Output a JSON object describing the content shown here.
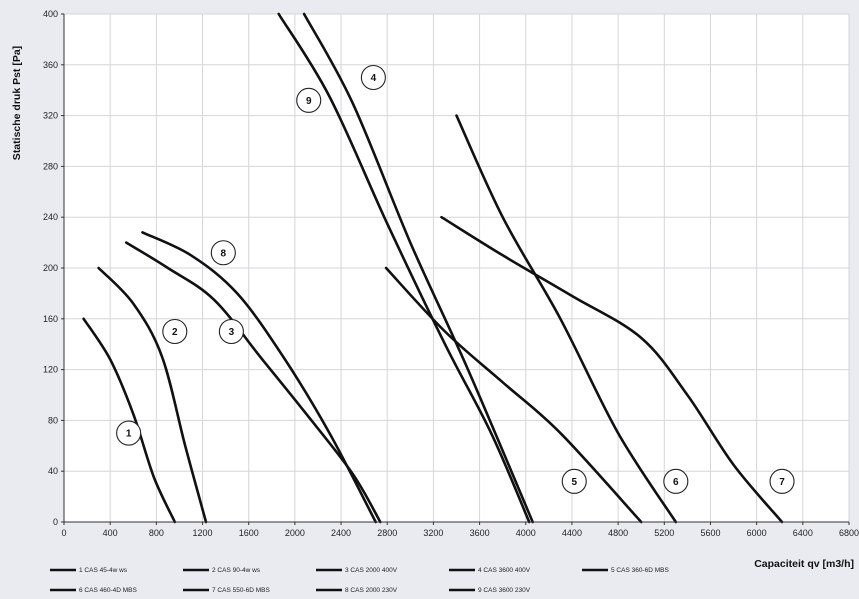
{
  "chart_data": {
    "type": "line",
    "xlabel": "Capaciteit qv [m3/h]",
    "ylabel": "Statische druk Pst [Pa]",
    "xlim": [
      0,
      6800
    ],
    "ylim": [
      0,
      400
    ],
    "x_ticks": [
      0,
      400,
      800,
      1200,
      1600,
      2000,
      2400,
      2800,
      3200,
      3600,
      4000,
      4400,
      4800,
      5200,
      5600,
      6000,
      6400,
      6800
    ],
    "y_ticks": [
      0,
      40,
      80,
      120,
      160,
      200,
      240,
      280,
      320,
      360,
      400
    ],
    "grid": true,
    "legend_position": "bottom",
    "series": [
      {
        "name": "1 CAS 45-4w ws",
        "marker_label": "1",
        "x": [
          170,
          400,
          600,
          780,
          960
        ],
        "y": [
          160,
          128,
          85,
          35,
          0
        ]
      },
      {
        "name": "2 CAS 90-4w ws",
        "marker_label": "2",
        "x": [
          300,
          600,
          850,
          1050,
          1230
        ],
        "y": [
          200,
          172,
          130,
          60,
          0
        ]
      },
      {
        "name": "3 CAS 2000 400V",
        "marker_label": "3",
        "x": [
          540,
          900,
          1300,
          1700,
          2100,
          2500,
          2740
        ],
        "y": [
          220,
          200,
          175,
          130,
          85,
          38,
          0
        ]
      },
      {
        "name": "4 CAS 3600 400V",
        "marker_label": "4",
        "x": [
          2080,
          2500,
          3000,
          3500,
          4060
        ],
        "y": [
          400,
          330,
          220,
          120,
          0
        ]
      },
      {
        "name": "5 CAS 360-6D MBS",
        "marker_label": "5",
        "x": [
          2790,
          3300,
          3800,
          4300,
          5000
        ],
        "y": [
          200,
          150,
          110,
          70,
          0
        ]
      },
      {
        "name": "6 CAS 460-4D MBS",
        "marker_label": "6",
        "x": [
          3400,
          3800,
          4300,
          4800,
          5300
        ],
        "y": [
          320,
          240,
          160,
          70,
          0
        ]
      },
      {
        "name": "7 CAS 550-6D MBS",
        "marker_label": "7",
        "x": [
          3270,
          3800,
          4400,
          5000,
          5400,
          5800,
          6220
        ],
        "y": [
          240,
          210,
          178,
          145,
          100,
          45,
          0
        ]
      },
      {
        "name": "8 CAS 2000 230V",
        "marker_label": "8",
        "x": [
          680,
          1100,
          1500,
          1900,
          2300,
          2700
        ],
        "y": [
          228,
          210,
          180,
          130,
          70,
          0
        ]
      },
      {
        "name": "9 CAS 3600 230V",
        "marker_label": "9",
        "x": [
          1860,
          2300,
          2800,
          3300,
          3700,
          4030
        ],
        "y": [
          400,
          335,
          235,
          140,
          70,
          0
        ]
      }
    ],
    "marker_positions": [
      {
        "label": "1",
        "x": 560,
        "y": 70
      },
      {
        "label": "2",
        "x": 960,
        "y": 150
      },
      {
        "label": "3",
        "x": 1450,
        "y": 150
      },
      {
        "label": "4",
        "x": 2680,
        "y": 350
      },
      {
        "label": "5",
        "x": 4420,
        "y": 32
      },
      {
        "label": "6",
        "x": 5300,
        "y": 32
      },
      {
        "label": "7",
        "x": 6220,
        "y": 32
      },
      {
        "label": "8",
        "x": 1380,
        "y": 212
      },
      {
        "label": "9",
        "x": 2120,
        "y": 332
      }
    ]
  }
}
